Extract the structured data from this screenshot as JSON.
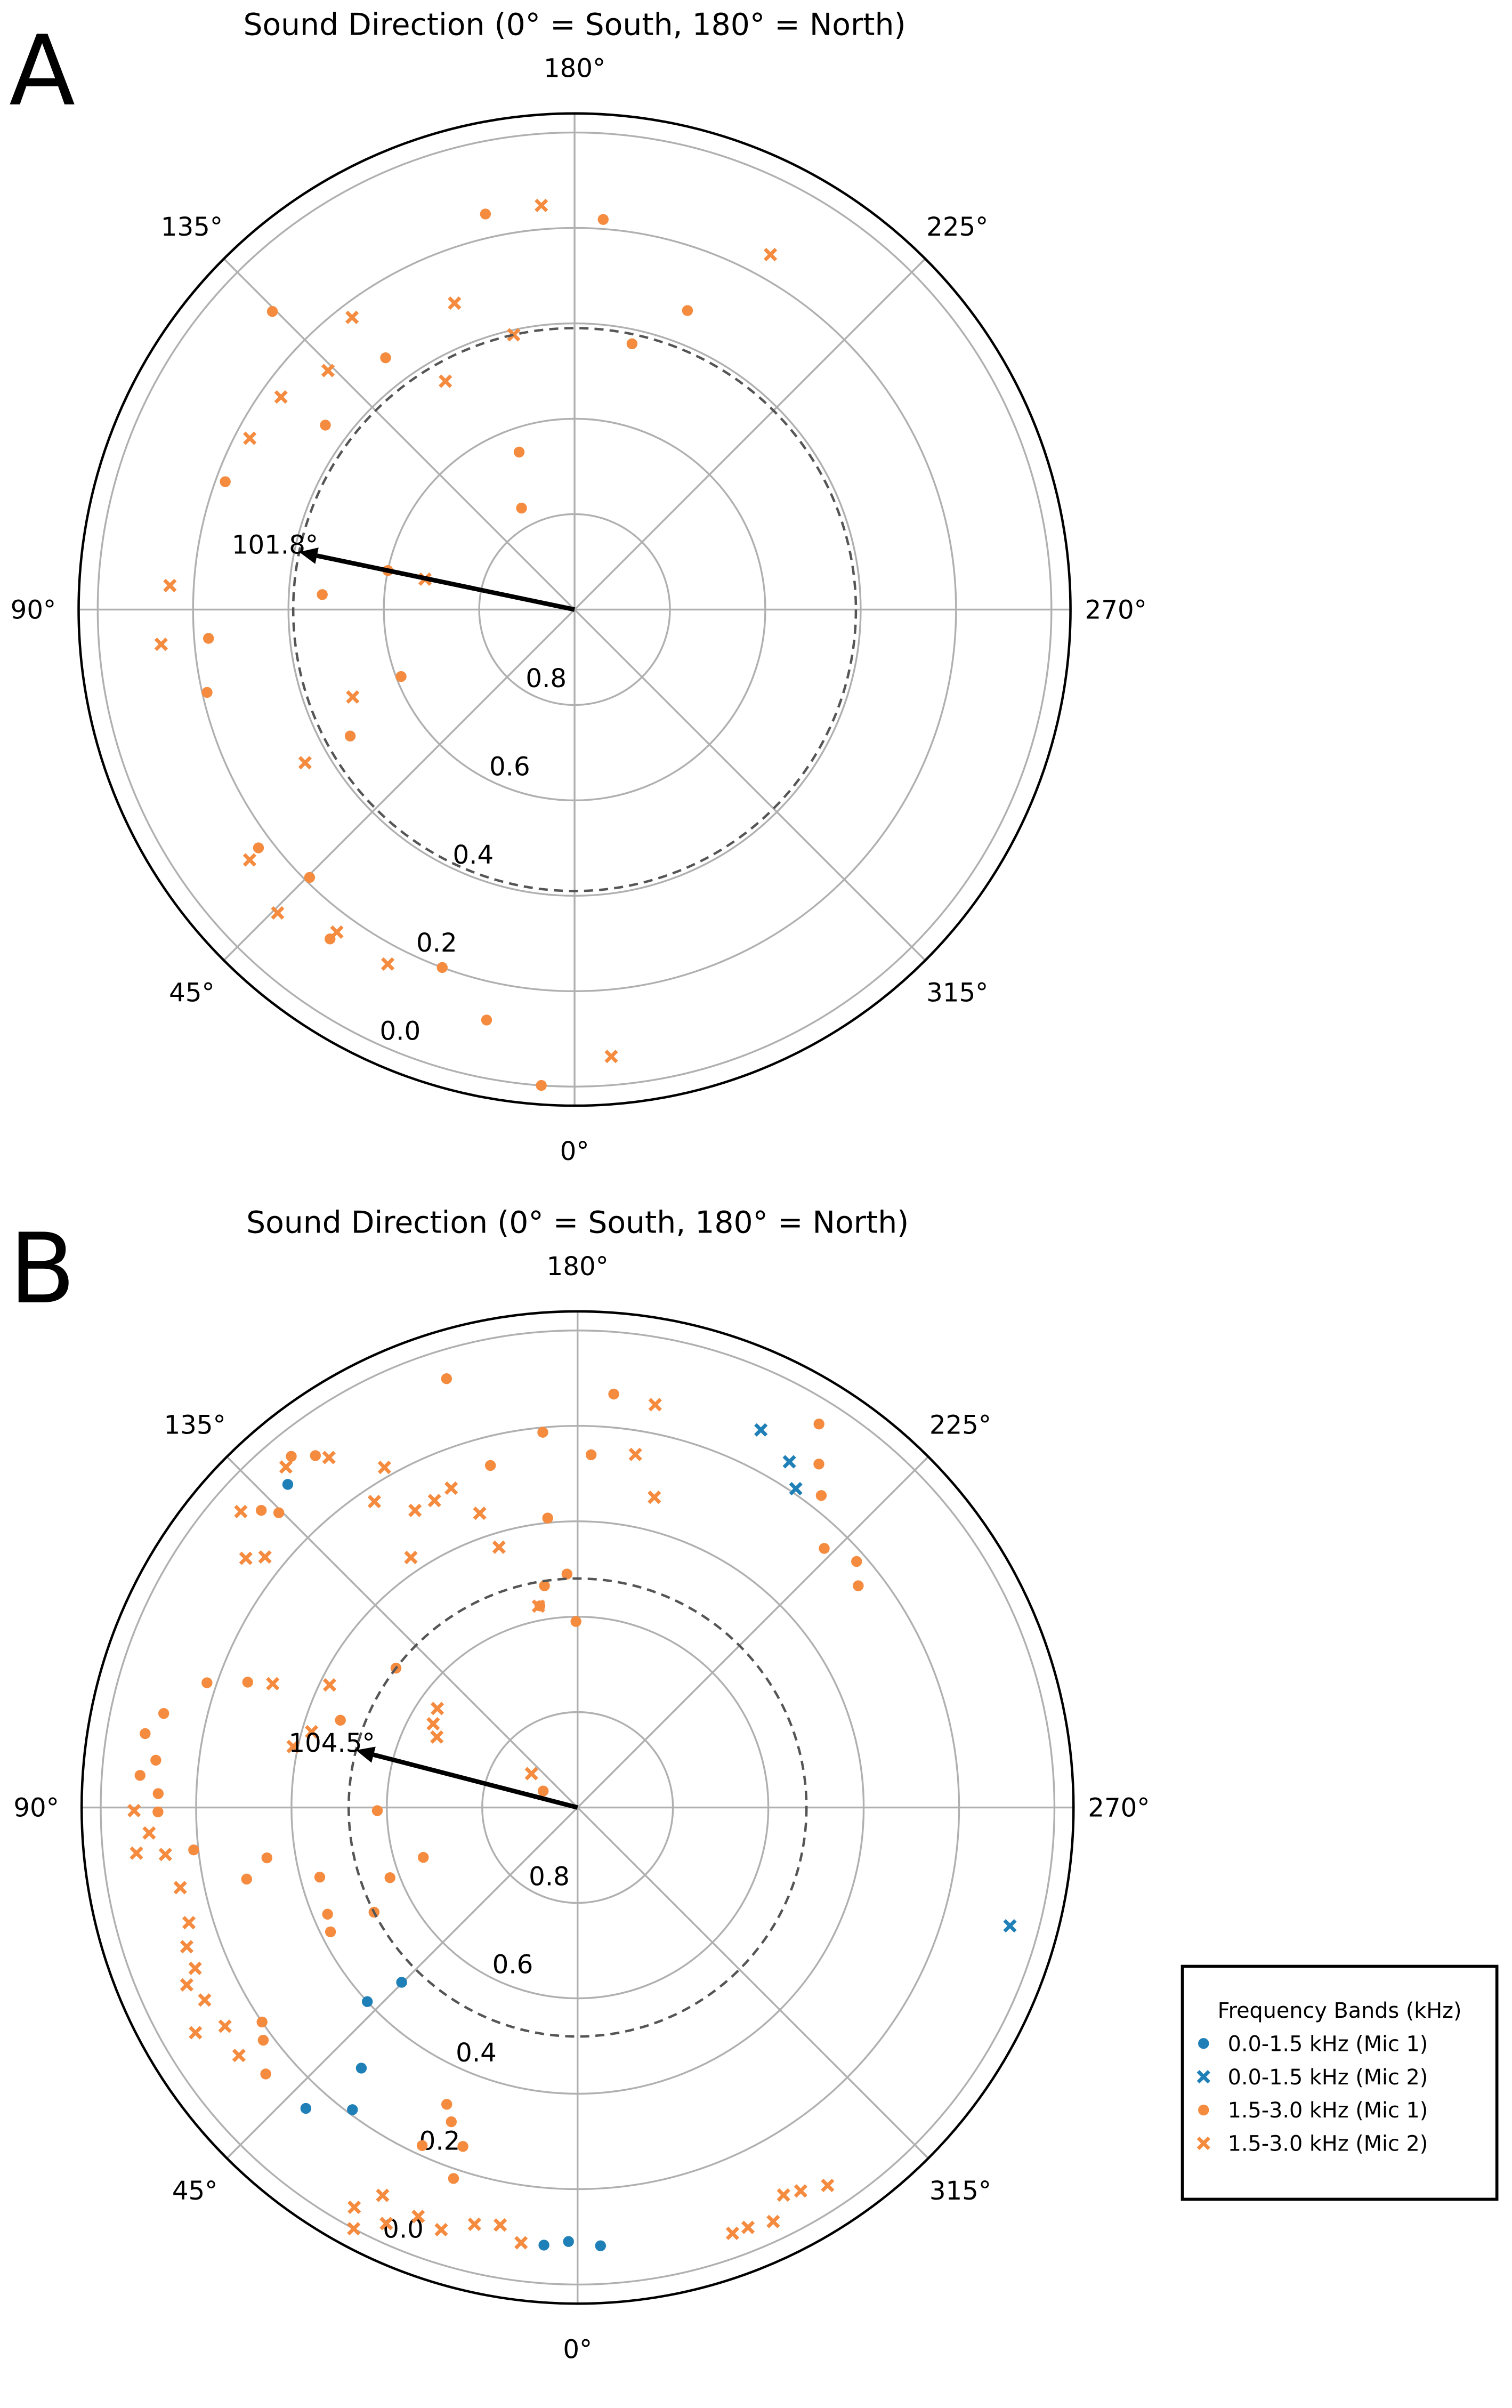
{
  "chart_data": [
    {
      "type": "polar-scatter",
      "panel_label": "A",
      "title": "Sound Direction (0° = South, 180° = North)",
      "rlim": [
        1,
        -0.04
      ],
      "rticks": [
        0.8,
        0.6,
        0.4,
        0.2,
        {
          "value": 0,
          "label": "0.0"
        }
      ],
      "xticks": [
        {
          "value": 0,
          "label": "0°"
        },
        {
          "value": 45,
          "label": "45°"
        },
        {
          "value": 90,
          "label": "90°"
        },
        {
          "value": 135,
          "label": "135°"
        },
        {
          "value": 180,
          "label": "180°"
        },
        {
          "value": 225,
          "label": "225°"
        },
        {
          "value": 270,
          "label": "270°"
        },
        {
          "value": 315,
          "label": "315°"
        }
      ],
      "grid": true,
      "arrow": {
        "angle": 101.8,
        "label": "101.8°",
        "r": 0.41
      },
      "series": [
        {
          "color": "#f58b3f",
          "marker": "o",
          "x": [
            167.3,
            184.2,
            134.6,
            200.7,
            192.2,
            143.1,
            126.5,
            160.6,
            110.1,
            152.4,
            101.8,
            93.4,
            85.5,
            77.3,
            68.9,
            60.6,
            53.0,
            44.7,
            36.6,
            20.3,
            12.1,
            4.0
          ],
          "values": [
            0.15,
            0.18,
            0.11,
            0.33,
            0.43,
            0.34,
            0.35,
            0.65,
            0.22,
            0.76,
            0.6,
            0.47,
            0.23,
            0.21,
            0.61,
            0.46,
            0.17,
            0.21,
            0.14,
            0.2,
            0.12,
            0
          ]
        },
        {
          "color": "#f58b3f",
          "marker": "x",
          "x": [
            175.3,
            208.9,
            142.7,
            158.6,
            167.5,
            134.1,
            125.9,
            150.5,
            117.8,
            93.4,
            85.2,
            101.5,
            68.5,
            60.4,
            52.4,
            44.4,
            36.4,
            27.8,
            355.3
          ],
          "values": [
            0.15,
            0.15,
            0.23,
            0.31,
            0.41,
            0.28,
            0.24,
            0.45,
            0.23,
            0.15,
            0.13,
            0.68,
            0.5,
            0.35,
            0.14,
            0.11,
            0.16,
            0.16,
            0.06
          ]
        }
      ]
    },
    {
      "type": "polar-scatter",
      "panel_label": "B",
      "title": "Sound Direction (0° = South, 180° = North)",
      "rlim": [
        1,
        -0.04
      ],
      "rticks": [
        0.8,
        0.6,
        0.4,
        0.2,
        {
          "value": 0,
          "label": "0.0"
        }
      ],
      "xticks": [
        {
          "value": 0,
          "label": "0°"
        },
        {
          "value": 45,
          "label": "45°"
        },
        {
          "value": 90,
          "label": "90°"
        },
        {
          "value": 135,
          "label": "135°"
        },
        {
          "value": 180,
          "label": "180°"
        },
        {
          "value": 225,
          "label": "225°"
        },
        {
          "value": 270,
          "label": "270°"
        },
        {
          "value": 315,
          "label": "315°"
        }
      ],
      "grid": true,
      "arrow": {
        "angle": 104.5,
        "label": "104.5°",
        "r": 0.52
      },
      "legend_title": "Frequency Bands (kHz)",
      "legend": "lower right",
      "series": [
        {
          "name": "0.0-1.5 kHz (Mic 1)",
          "color": "#1f80b8",
          "marker": "o",
          "x": [
            138.1,
            45.2,
            47.3,
            39.7,
            42.1,
            36.7,
            4.4,
            1.2,
            357.0
          ],
          "values": [
            0.09,
            0.48,
            0.4,
            0.29,
            0.15,
            0.21,
            0.08,
            0.09,
            0.08
          ]
        },
        {
          "name": "0.0-1.5 kHz (Mic 2)",
          "color": "#1f80b8",
          "marker": "x",
          "x": [
            205.9,
            211.5,
            214.4,
            285.3
          ],
          "values": [
            0.12,
            0.15,
            0.19,
            0.06
          ]
        },
        {
          "name": "1.5-3.0 kHz (Mic 1)",
          "color": "#f58b3f",
          "marker": "o",
          "x": [
            163.0,
            185.0,
            212.2,
            140.8,
            143.3,
            174.7,
            182.2,
            165.7,
            215.1,
            133.2,
            218.0,
            174.1,
            223.6,
            228.6,
            177.4,
            171.5,
            169.4,
            231.7,
            179.5,
            108.6,
            110.8,
            127.5,
            102.8,
            99.7,
            96.4,
            110.2,
            94.2,
            91.9,
            89.4,
            89.1,
            72.1,
            83.7,
            80.8,
            74.9,
            69.5,
            77.8,
            66.9,
            63.3,
            62.8,
            55.8,
            53.5,
            49.5,
            23.8,
            21.9,
            18.7,
            24.7,
            18.5,
            115.6,
            134.6
          ],
          "values": [
            0.06,
            0.13,
            0.05,
            0.05,
            0.08,
            0.21,
            0.26,
            0.26,
            0.12,
            0.09,
            0.17,
            0.39,
            0.25,
            0.22,
            0.51,
            0.53,
            0.57,
            0.25,
            0.61,
            0.18,
            0.26,
            0.52,
            0.11,
            0.08,
            0.11,
            0.47,
            0.08,
            0.12,
            0.12,
            0.58,
            0.66,
            0.19,
            0.34,
            0.44,
            0.58,
            0.29,
            0.43,
            0.42,
            0.52,
            0.2,
            0.18,
            0.14,
            0.32,
            0.29,
            0.25,
            0.22,
            0.18,
            0.92,
            0.12
          ]
        },
        {
          "name": "1.5-3.0 kHz (Mic 2)",
          "color": "#f58b3f",
          "marker": "x",
          "x": [
            190.9,
            189.3,
            193.9,
            139.4,
            144.6,
            150.4,
            131.3,
            146.4,
            151.3,
            155.0,
            158.4,
            161.6,
            146.3,
            163.2,
            128.7,
            126.9,
            169.0,
            116.3,
            112.1,
            105.9,
            125.2,
            120.1,
            116.6,
            102.1,
            126.3,
            89.6,
            86.6,
            83.5,
            84.1,
            78.6,
            73.5,
            70.4,
            67.2,
            65.6,
            62.7,
            59.5,
            58.2,
            53.8,
            29.2,
            26.7,
            28.0,
            24.7,
            21.3,
            17.9,
            13.9,
            10.5,
            7.4,
            340.0,
            337.9,
            334.7,
            332.0,
            329.8,
            326.5
          ],
          "values": [
            0.14,
            0.25,
            0.33,
            0.06,
            0.1,
            0.18,
            0.06,
            0.23,
            0.29,
            0.29,
            0.28,
            0.35,
            0.37,
            0.43,
            0.16,
            0.13,
            0.57,
            0.42,
            0.31,
            0.42,
            0.64,
            0.65,
            0.67,
            0.39,
            0.88,
            0.07,
            0.1,
            0.13,
            0.07,
            0.15,
            0.15,
            0.13,
            0.13,
            0.1,
            0.12,
            0.07,
            0.13,
            0.12,
            0.04,
            0.09,
            0,
            0.04,
            0.08,
            0.07,
            0.1,
            0.11,
            0.08,
            0.05,
            0.05,
            0.04,
            0.08,
            0.07,
            0.05
          ]
        }
      ]
    }
  ]
}
